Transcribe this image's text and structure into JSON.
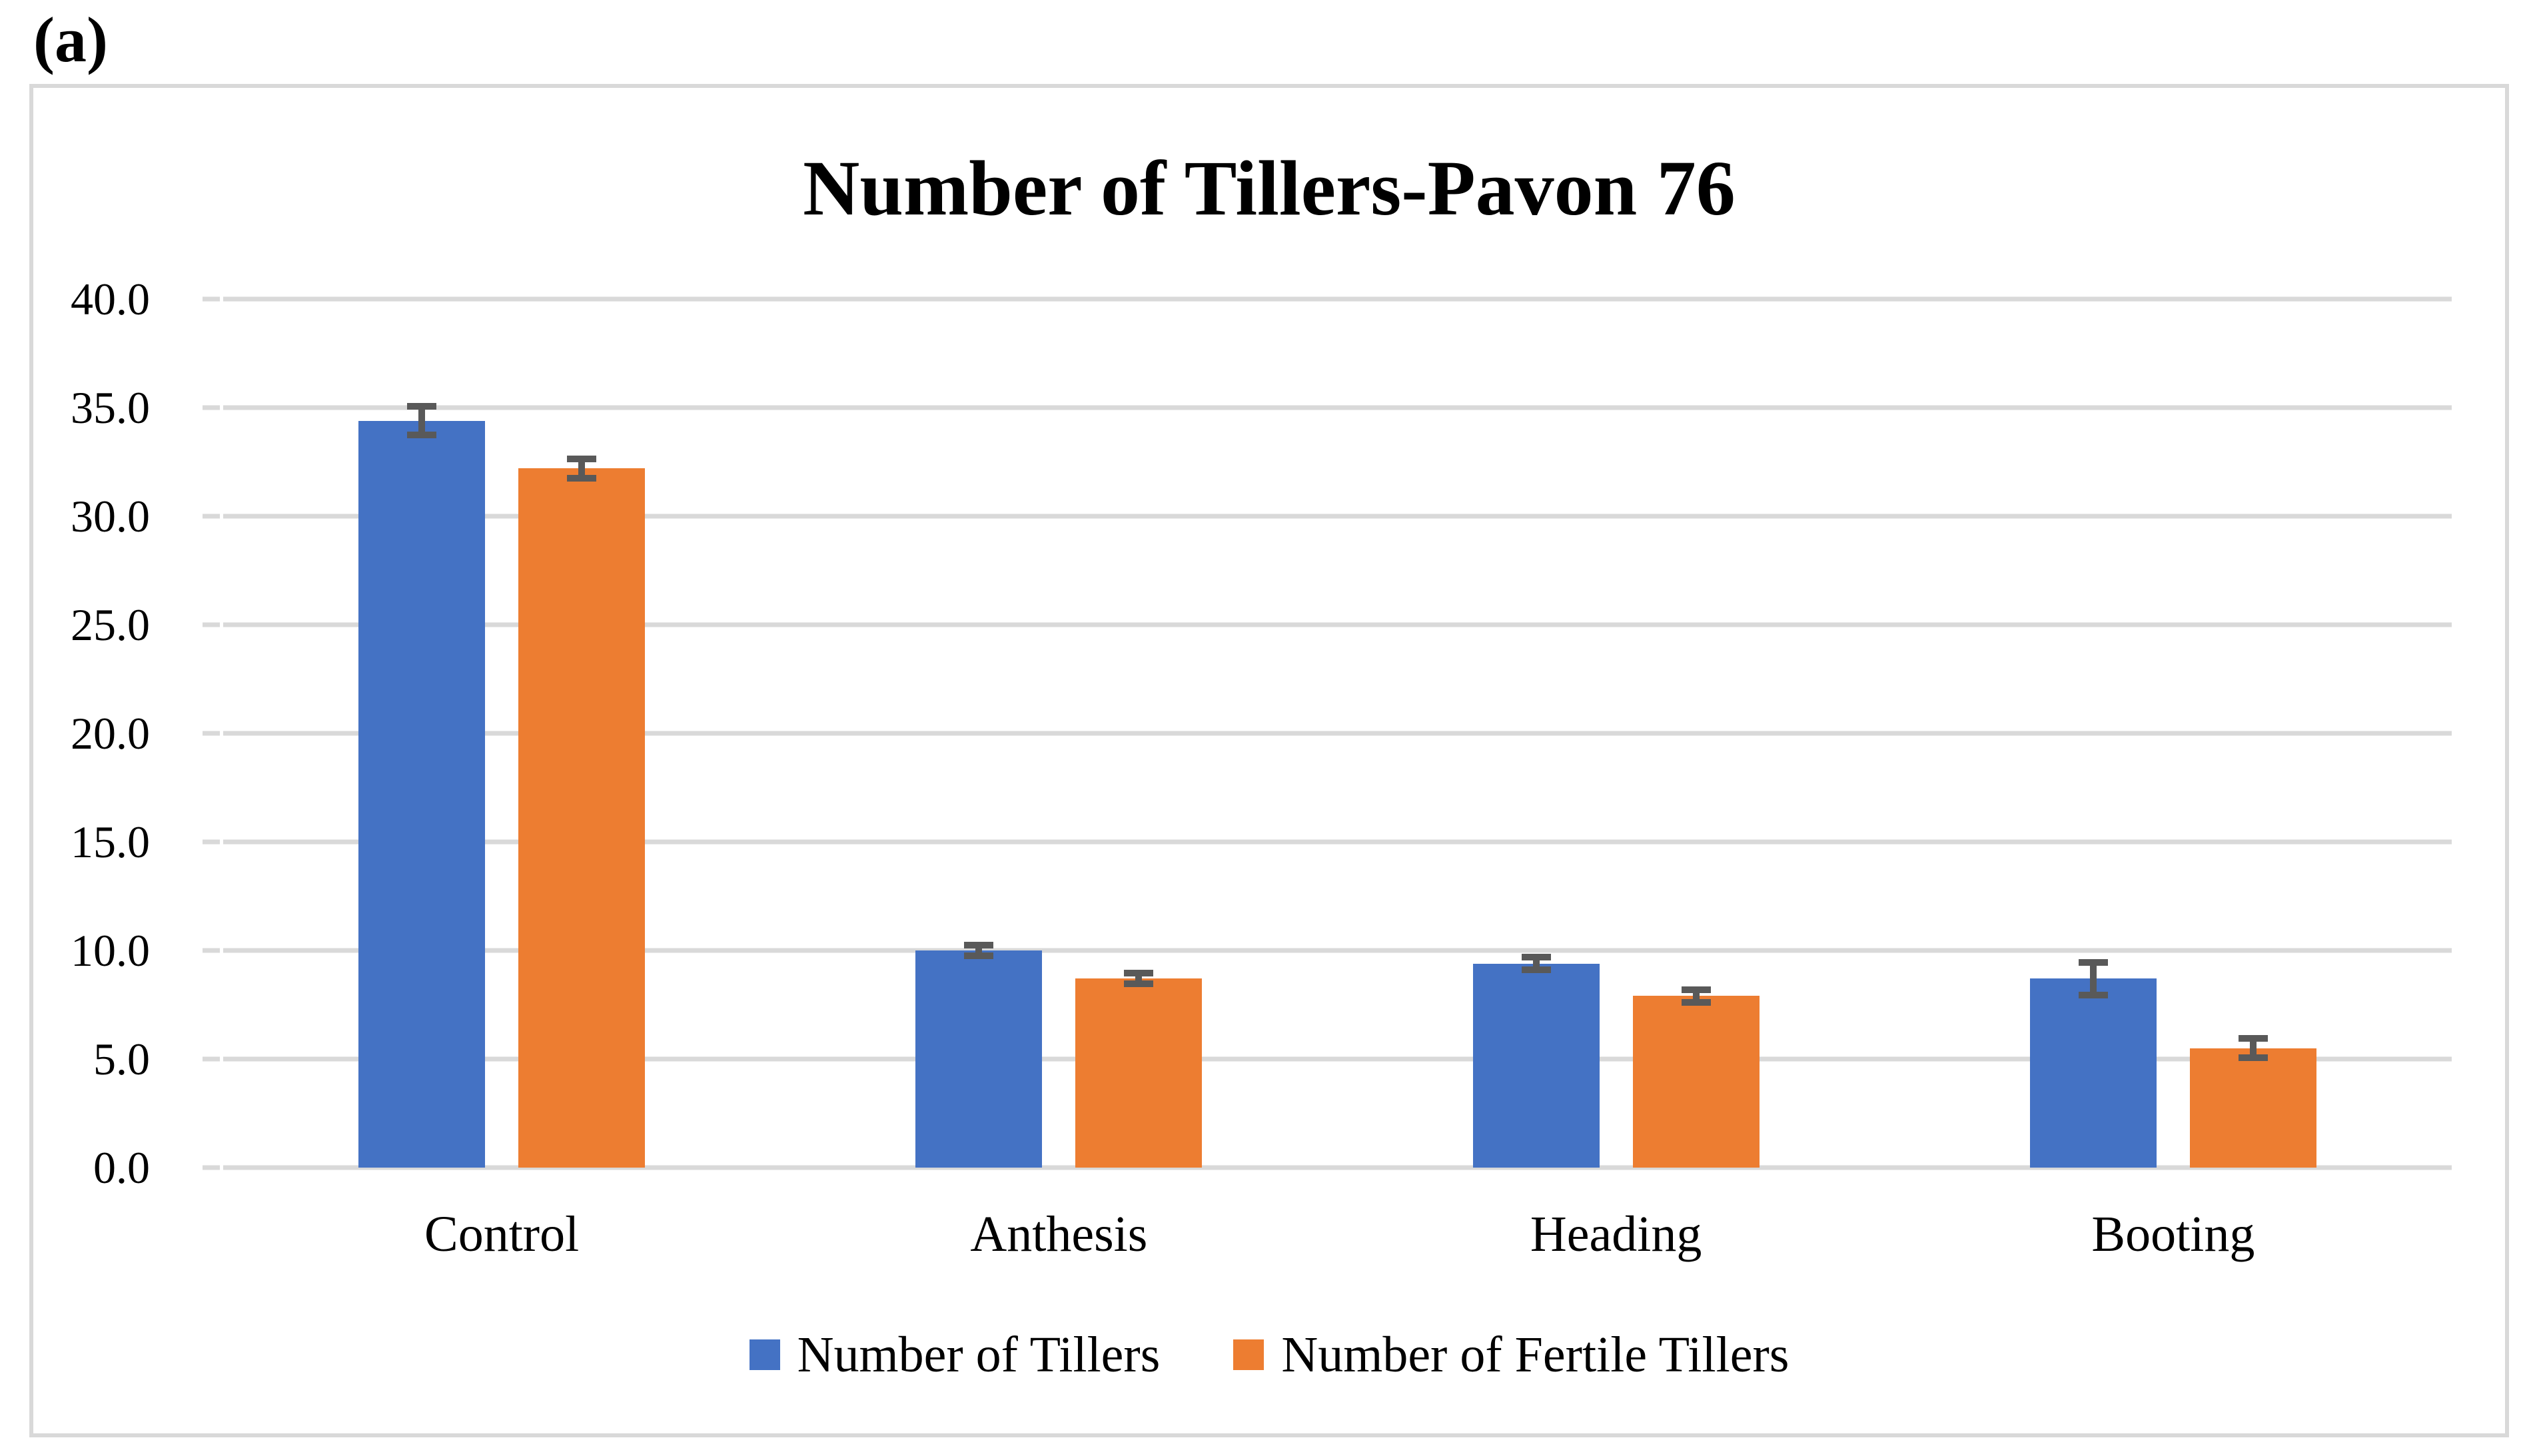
{
  "figure_label": "(a)",
  "chart_data": {
    "type": "bar",
    "title": "Number of Tillers-Pavon 76",
    "categories": [
      "Control",
      "Anthesis",
      "Heading",
      "Booting"
    ],
    "series": [
      {
        "name": "Number of Tillers",
        "color": "#4472C4",
        "values": [
          34.4,
          10.0,
          9.4,
          8.7
        ],
        "errors": [
          0.8,
          0.4,
          0.45,
          0.9
        ]
      },
      {
        "name": "Number of Fertile Tillers",
        "color": "#ED7D31",
        "values": [
          32.2,
          8.7,
          7.9,
          5.5
        ],
        "errors": [
          0.6,
          0.4,
          0.45,
          0.6
        ]
      }
    ],
    "ylim": [
      0,
      40
    ],
    "ytick_step": 5,
    "ytick_labels": [
      "40.0",
      "35.0",
      "30.0",
      "25.0",
      "20.0",
      "15.0",
      "10.0",
      "5.0",
      "0.0"
    ],
    "grid": true,
    "legend_position": "bottom",
    "colors": {
      "gridline": "#D9D9D9",
      "frame_border": "#D9D9D9",
      "error_bar": "#595959",
      "text": "#000000"
    }
  }
}
